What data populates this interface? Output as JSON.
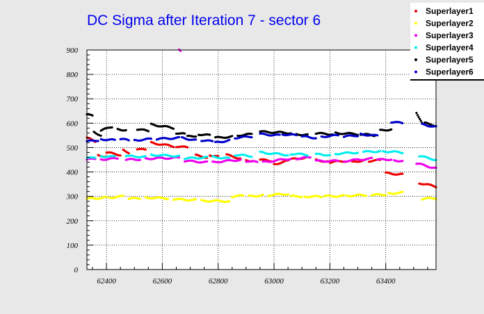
{
  "chart_data": {
    "type": "scatter",
    "title": "DC Sigma after Iteration 7 - sector 6",
    "xlabel": "",
    "ylabel": "",
    "xlim": [
      62330,
      63580
    ],
    "ylim": [
      0,
      900
    ],
    "x_ticks": [
      62400,
      62600,
      62800,
      63000,
      63200,
      63400
    ],
    "y_ticks": [
      0,
      100,
      200,
      300,
      400,
      500,
      600,
      700,
      800,
      900
    ],
    "grid": true,
    "legend_position": "top-right",
    "series": [
      {
        "name": "Superlayer1",
        "color": "#ee0000",
        "segments": [
          [
            62330,
            62360,
            540,
            525
          ],
          [
            62370,
            62400,
            470,
            462
          ],
          [
            62400,
            62450,
            480,
            470
          ],
          [
            62460,
            62480,
            490,
            480
          ],
          [
            62510,
            62540,
            495,
            490
          ],
          [
            62560,
            62640,
            520,
            505
          ],
          [
            62650,
            62690,
            505,
            500
          ],
          [
            62720,
            62760,
            468,
            460
          ],
          [
            62770,
            62800,
            470,
            462
          ],
          [
            62830,
            62880,
            470,
            455
          ],
          [
            62900,
            62920,
            450,
            445
          ],
          [
            62950,
            63000,
            450,
            445
          ],
          [
            63000,
            63050,
            432,
            445
          ],
          [
            63050,
            63120,
            450,
            460
          ],
          [
            63150,
            63200,
            450,
            440
          ],
          [
            63200,
            63260,
            440,
            445
          ],
          [
            63280,
            63330,
            440,
            450
          ],
          [
            63340,
            63380,
            445,
            448
          ],
          [
            63400,
            63460,
            395,
            390
          ],
          [
            63520,
            63580,
            355,
            340
          ]
        ]
      },
      {
        "name": "Superlayer2",
        "color": "#ffff00",
        "segments": [
          [
            62330,
            62400,
            290,
            295
          ],
          [
            62410,
            62460,
            295,
            300
          ],
          [
            62480,
            62520,
            290,
            292
          ],
          [
            62540,
            62620,
            295,
            292
          ],
          [
            62640,
            62720,
            288,
            285
          ],
          [
            62740,
            62840,
            282,
            280
          ],
          [
            62850,
            62890,
            300,
            302
          ],
          [
            62910,
            62960,
            300,
            305
          ],
          [
            62980,
            63050,
            305,
            310
          ],
          [
            63060,
            63100,
            300,
            300
          ],
          [
            63110,
            63170,
            300,
            298
          ],
          [
            63180,
            63250,
            300,
            302
          ],
          [
            63260,
            63330,
            303,
            305
          ],
          [
            63350,
            63400,
            305,
            308
          ],
          [
            63410,
            63460,
            312,
            315
          ],
          [
            63530,
            63580,
            290,
            292
          ]
        ]
      },
      {
        "name": "Superlayer3",
        "color": "#ee00ee",
        "segments": [
          [
            62330,
            62360,
            450,
            455
          ],
          [
            62380,
            62440,
            452,
            455
          ],
          [
            62470,
            62520,
            450,
            452
          ],
          [
            62540,
            62660,
            455,
            458
          ],
          [
            62680,
            62760,
            445,
            440
          ],
          [
            62780,
            62880,
            440,
            450
          ],
          [
            62900,
            62940,
            445,
            440
          ],
          [
            62960,
            63060,
            440,
            455
          ],
          [
            63080,
            63130,
            455,
            460
          ],
          [
            63150,
            63230,
            445,
            445
          ],
          [
            63250,
            63350,
            445,
            455
          ],
          [
            63370,
            63420,
            450,
            452
          ],
          [
            63430,
            63460,
            448,
            445
          ],
          [
            63510,
            63580,
            435,
            415
          ],
          [
            62660,
            62665,
            900,
            895
          ]
        ]
      },
      {
        "name": "Superlayer4",
        "color": "#00eeee",
        "segments": [
          [
            62330,
            62360,
            455,
            460
          ],
          [
            62380,
            62430,
            465,
            462
          ],
          [
            62470,
            62540,
            465,
            462
          ],
          [
            62560,
            62660,
            470,
            465
          ],
          [
            62680,
            62760,
            455,
            460
          ],
          [
            62780,
            62840,
            462,
            455
          ],
          [
            62860,
            62920,
            470,
            465
          ],
          [
            62950,
            63050,
            480,
            470
          ],
          [
            63060,
            63120,
            475,
            470
          ],
          [
            63150,
            63200,
            472,
            470
          ],
          [
            63220,
            63300,
            475,
            480
          ],
          [
            63320,
            63380,
            482,
            485
          ],
          [
            63390,
            63460,
            485,
            480
          ],
          [
            63520,
            63580,
            465,
            450
          ]
        ]
      },
      {
        "name": "Superlayer5",
        "color": "#000000",
        "segments": [
          [
            62330,
            62350,
            635,
            630
          ],
          [
            62355,
            62380,
            565,
            550
          ],
          [
            62380,
            62420,
            570,
            585
          ],
          [
            62440,
            62470,
            575,
            572
          ],
          [
            62510,
            62550,
            575,
            568
          ],
          [
            62560,
            62640,
            595,
            580
          ],
          [
            62650,
            62680,
            560,
            555
          ],
          [
            62690,
            62720,
            545,
            548
          ],
          [
            62730,
            62770,
            555,
            550
          ],
          [
            62790,
            62850,
            540,
            545
          ],
          [
            62870,
            62920,
            550,
            555
          ],
          [
            62950,
            63060,
            565,
            560
          ],
          [
            63080,
            63120,
            555,
            552
          ],
          [
            63150,
            63210,
            558,
            555
          ],
          [
            63220,
            63300,
            560,
            555
          ],
          [
            63310,
            63360,
            555,
            550
          ],
          [
            63380,
            63420,
            570,
            575
          ],
          [
            63510,
            63530,
            645,
            600
          ],
          [
            63540,
            63580,
            600,
            590
          ]
        ]
      },
      {
        "name": "Superlayer6",
        "color": "#0000cc",
        "segments": [
          [
            62330,
            62370,
            525,
            530
          ],
          [
            62380,
            62430,
            535,
            530
          ],
          [
            62450,
            62480,
            535,
            530
          ],
          [
            62500,
            62560,
            530,
            535
          ],
          [
            62580,
            62660,
            535,
            540
          ],
          [
            62670,
            62720,
            540,
            530
          ],
          [
            62740,
            62780,
            530,
            525
          ],
          [
            62790,
            62840,
            520,
            530
          ],
          [
            62860,
            62920,
            540,
            545
          ],
          [
            62950,
            63020,
            555,
            550
          ],
          [
            63030,
            63080,
            555,
            550
          ],
          [
            63100,
            63150,
            545,
            540
          ],
          [
            63170,
            63230,
            545,
            550
          ],
          [
            63250,
            63300,
            545,
            550
          ],
          [
            63310,
            63370,
            555,
            548
          ],
          [
            63420,
            63460,
            605,
            600
          ],
          [
            63530,
            63580,
            595,
            585
          ]
        ]
      }
    ]
  }
}
